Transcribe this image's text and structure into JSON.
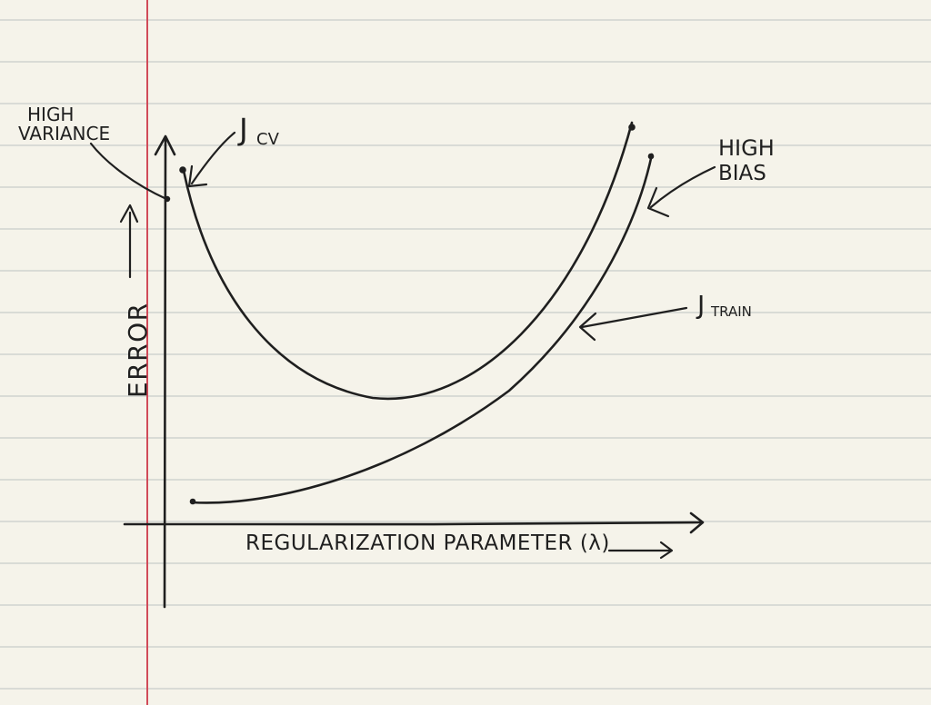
{
  "diagram": {
    "y_axis_label": "ERROR",
    "x_axis_label": "REGULARIZATION  PARAMETER (λ)",
    "curve_labels": {
      "cv": "J",
      "cv_subscript": "CV",
      "train": "J",
      "train_subscript": "TRAIN"
    },
    "annotations": {
      "high_variance_line1": "HIGH",
      "high_variance_line2": "VARIANCE",
      "high_bias_line1": "HIGH",
      "high_bias_line2": "BIAS"
    },
    "colors": {
      "paper": "#f5f3ea",
      "rule_lines": "#d9dbd6",
      "margin_line": "#d14a58",
      "ink": "#1f1f1f"
    }
  }
}
